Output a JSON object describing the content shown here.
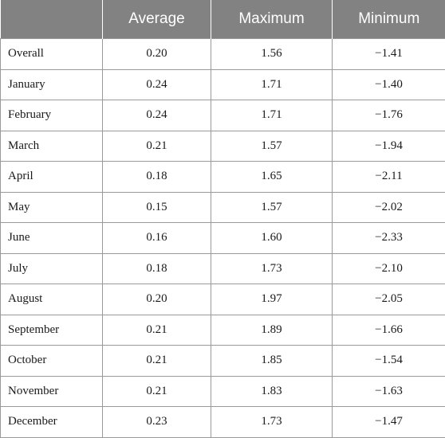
{
  "table": {
    "headers": [
      "",
      "Average",
      "Maximum",
      "Minimum"
    ],
    "rows": [
      {
        "label": "Overall",
        "average": "0.20",
        "maximum": "1.56",
        "minimum": "−1.41"
      },
      {
        "label": "January",
        "average": "0.24",
        "maximum": "1.71",
        "minimum": "−1.40"
      },
      {
        "label": "February",
        "average": "0.24",
        "maximum": "1.71",
        "minimum": "−1.76"
      },
      {
        "label": "March",
        "average": "0.21",
        "maximum": "1.57",
        "minimum": "−1.94"
      },
      {
        "label": "April",
        "average": "0.18",
        "maximum": "1.65",
        "minimum": "−2.11"
      },
      {
        "label": "May",
        "average": "0.15",
        "maximum": "1.57",
        "minimum": "−2.02"
      },
      {
        "label": "June",
        "average": "0.16",
        "maximum": "1.60",
        "minimum": "−2.33"
      },
      {
        "label": "July",
        "average": "0.18",
        "maximum": "1.73",
        "minimum": "−2.10"
      },
      {
        "label": "August",
        "average": "0.20",
        "maximum": "1.97",
        "minimum": "−2.05"
      },
      {
        "label": "September",
        "average": "0.21",
        "maximum": "1.89",
        "minimum": "−1.66"
      },
      {
        "label": "October",
        "average": "0.21",
        "maximum": "1.85",
        "minimum": "−1.54"
      },
      {
        "label": "November",
        "average": "0.21",
        "maximum": "1.83",
        "minimum": "−1.63"
      },
      {
        "label": "December",
        "average": "0.23",
        "maximum": "1.73",
        "minimum": "−1.47"
      }
    ]
  }
}
